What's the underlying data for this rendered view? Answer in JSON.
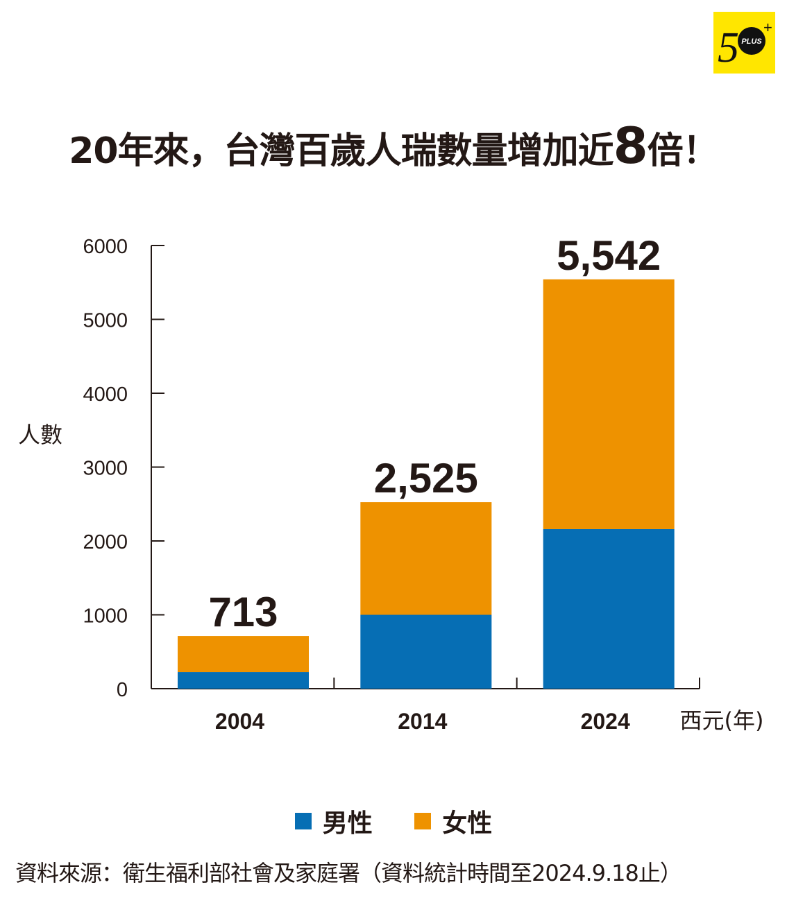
{
  "logo": {
    "text": "50 PLUS +",
    "background": "#FFE600"
  },
  "title": {
    "part1": "20年來，台灣百歲人瑞數量增加近",
    "highlight": "8",
    "part2": "倍！"
  },
  "chart_data": {
    "type": "bar",
    "stacked": true,
    "categories": [
      "2004",
      "2014",
      "2024"
    ],
    "series": [
      {
        "name": "男性",
        "values": [
          225,
          1000,
          2160
        ],
        "color": "#066EB4"
      },
      {
        "name": "女性",
        "values": [
          488,
          1525,
          3382
        ],
        "color": "#EE9200"
      }
    ],
    "totals": [
      "713",
      "2,525",
      "5,542"
    ],
    "ylabel": "人數",
    "xlabel": "西元(年)",
    "ylim": [
      0,
      6000
    ],
    "yticks": [
      "0",
      "1000",
      "2000",
      "3000",
      "4000",
      "5000",
      "6000"
    ],
    "grid": false,
    "legend": "bottom"
  },
  "source": "資料來源：衛生福利部社會及家庭署（資料統計時間至2024.9.18止）"
}
